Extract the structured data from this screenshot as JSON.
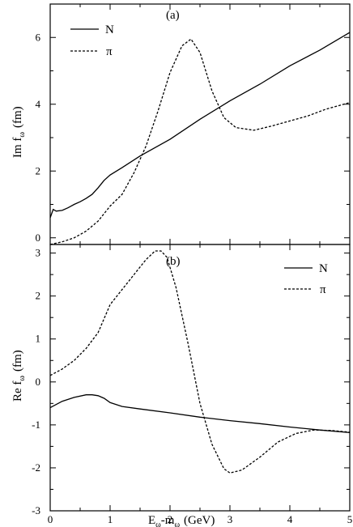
{
  "chart_data": [
    {
      "type": "line",
      "panel_label": "(a)",
      "ylabel_main": "Im f",
      "ylabel_sub": "ω",
      "ylabel_unit": "(fm)",
      "xlim": [
        0,
        5
      ],
      "ylim": [
        -0.2,
        7
      ],
      "yticks": [
        0,
        2,
        4,
        6
      ],
      "legend_position": "top-left",
      "series": [
        {
          "name": "N",
          "style": "solid",
          "x": [
            0.0,
            0.05,
            0.1,
            0.2,
            0.3,
            0.4,
            0.5,
            0.6,
            0.7,
            0.8,
            0.9,
            1.0,
            1.2,
            1.5,
            2.0,
            2.5,
            3.0,
            3.5,
            4.0,
            4.5,
            5.0
          ],
          "y": [
            0.6,
            0.85,
            0.8,
            0.82,
            0.9,
            1.0,
            1.08,
            1.18,
            1.3,
            1.5,
            1.72,
            1.88,
            2.1,
            2.45,
            2.95,
            3.55,
            4.1,
            4.6,
            5.15,
            5.62,
            6.15
          ]
        },
        {
          "name": "π",
          "style": "dashed",
          "x": [
            0.0,
            0.2,
            0.4,
            0.6,
            0.8,
            1.0,
            1.2,
            1.4,
            1.6,
            1.8,
            2.0,
            2.2,
            2.35,
            2.5,
            2.7,
            2.9,
            3.1,
            3.4,
            3.7,
            4.0,
            4.3,
            4.6,
            5.0
          ],
          "y": [
            -0.2,
            -0.12,
            0.0,
            0.2,
            0.5,
            0.95,
            1.3,
            1.95,
            2.75,
            3.8,
            4.95,
            5.75,
            5.95,
            5.55,
            4.4,
            3.6,
            3.3,
            3.22,
            3.35,
            3.5,
            3.65,
            3.85,
            4.05
          ]
        }
      ]
    },
    {
      "type": "line",
      "panel_label": "(b)",
      "ylabel_main": "Re f",
      "ylabel_sub": "ω",
      "ylabel_unit": "(fm)",
      "xlabel_main": "E",
      "xlabel_sub1": "ω",
      "xlabel_mid": "-m",
      "xlabel_sub2": "ω",
      "xlabel_unit": "(GeV)",
      "xlim": [
        0,
        5
      ],
      "ylim": [
        -3,
        3.2
      ],
      "yticks": [
        -3,
        -2,
        -1,
        0,
        1,
        2,
        3
      ],
      "xticks": [
        0,
        1,
        2,
        3,
        4,
        5
      ],
      "legend_position": "top-right",
      "series": [
        {
          "name": "N",
          "style": "solid",
          "x": [
            0.0,
            0.2,
            0.4,
            0.6,
            0.7,
            0.8,
            0.9,
            1.0,
            1.2,
            1.5,
            2.0,
            2.5,
            3.0,
            3.5,
            4.0,
            4.5,
            5.0
          ],
          "y": [
            -0.6,
            -0.45,
            -0.36,
            -0.3,
            -0.3,
            -0.32,
            -0.38,
            -0.48,
            -0.57,
            -0.63,
            -0.72,
            -0.82,
            -0.9,
            -0.97,
            -1.05,
            -1.12,
            -1.18
          ]
        },
        {
          "name": "π",
          "style": "dashed",
          "x": [
            0.0,
            0.2,
            0.4,
            0.6,
            0.8,
            1.0,
            1.2,
            1.4,
            1.6,
            1.75,
            1.85,
            1.95,
            2.1,
            2.3,
            2.5,
            2.7,
            2.9,
            3.0,
            3.2,
            3.5,
            3.8,
            4.1,
            4.4,
            4.7,
            5.0
          ],
          "y": [
            0.15,
            0.3,
            0.5,
            0.78,
            1.15,
            1.8,
            2.15,
            2.5,
            2.85,
            3.05,
            3.05,
            2.9,
            2.2,
            0.9,
            -0.5,
            -1.45,
            -2.02,
            -2.12,
            -2.05,
            -1.75,
            -1.4,
            -1.2,
            -1.12,
            -1.13,
            -1.17
          ]
        }
      ]
    }
  ]
}
